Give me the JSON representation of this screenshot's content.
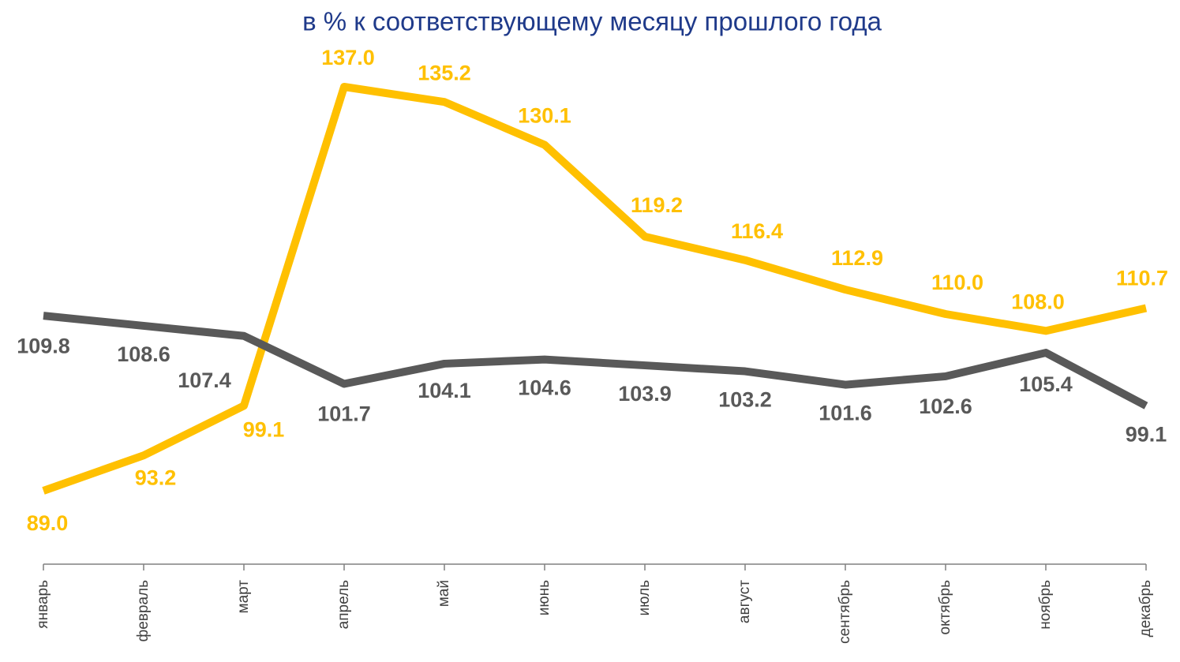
{
  "chart_data": {
    "type": "line",
    "title": "в % к соответствующему месяцу прошлого года",
    "categories": [
      "январь",
      "февраль",
      "март",
      "апрель",
      "май",
      "июнь",
      "июль",
      "август",
      "сентябрь",
      "октябрь",
      "ноябрь",
      "декабрь"
    ],
    "series": [
      {
        "color": "#ffc000",
        "values": [
          89.0,
          93.2,
          99.1,
          137.0,
          135.2,
          130.1,
          119.2,
          116.4,
          112.9,
          110.0,
          108.0,
          110.7
        ],
        "value_labels": [
          "89.0",
          "93.2",
          "99.1",
          "137.0",
          "135.2",
          "130.1",
          "119.2",
          "116.4",
          "112.9",
          "110.0",
          "108.0",
          "110.7"
        ]
      },
      {
        "color": "#595959",
        "values": [
          109.8,
          108.6,
          107.4,
          101.7,
          104.1,
          104.6,
          103.9,
          103.2,
          101.6,
          102.6,
          105.4,
          99.1
        ],
        "value_labels": [
          "109.8",
          "108.6",
          "107.4",
          "101.7",
          "104.1",
          "104.6",
          "103.9",
          "103.2",
          "101.6",
          "102.6",
          "105.4",
          "99.1"
        ]
      }
    ]
  }
}
